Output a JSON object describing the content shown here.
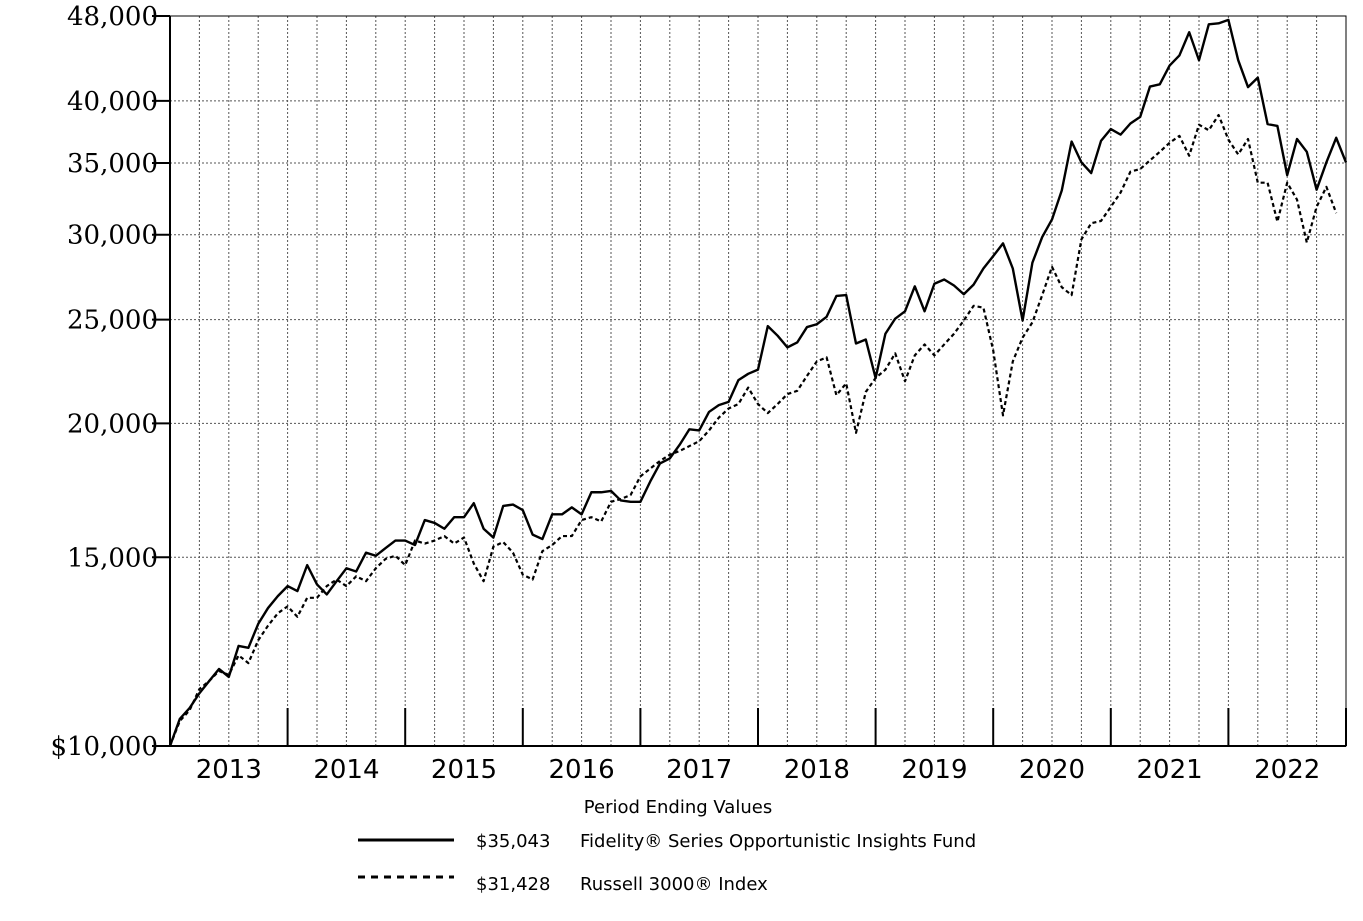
{
  "chart_data": {
    "type": "line",
    "y_scale": "log",
    "ylim": [
      10000,
      48000
    ],
    "xlim": [
      "2012-12",
      "2022-12"
    ],
    "grid": true,
    "y_ticks": [
      {
        "value": 10000,
        "label": "$10,000"
      },
      {
        "value": 15000,
        "label": "15,000"
      },
      {
        "value": 20000,
        "label": "20,000"
      },
      {
        "value": 25000,
        "label": "25,000"
      },
      {
        "value": 30000,
        "label": "30,000"
      },
      {
        "value": 35000,
        "label": "35,000"
      },
      {
        "value": 40000,
        "label": "40,000"
      },
      {
        "value": 48000,
        "label": "48,000"
      }
    ],
    "x_tick_labels": [
      "2013",
      "2014",
      "2015",
      "2016",
      "2017",
      "2018",
      "2019",
      "2020",
      "2021",
      "2022"
    ],
    "legend_title": "Period Ending Values",
    "series": [
      {
        "name": "Fidelity® Series Opportunistic Insights Fund",
        "ending_value_label": "$35,043",
        "style": "solid",
        "color": "#000000",
        "x_start": "2012-12",
        "values": [
          10000,
          10600,
          10850,
          11200,
          11500,
          11800,
          11600,
          12400,
          12350,
          13000,
          13450,
          13800,
          14100,
          13950,
          14750,
          14150,
          13850,
          14250,
          14650,
          14550,
          15150,
          15050,
          15300,
          15550,
          15550,
          15400,
          16250,
          16150,
          15950,
          16350,
          16350,
          16850,
          15950,
          15650,
          16750,
          16800,
          16600,
          15750,
          15600,
          16450,
          16450,
          16700,
          16450,
          17250,
          17250,
          17300,
          16950,
          16900,
          16900,
          17650,
          18350,
          18550,
          19100,
          19750,
          19700,
          20500,
          20800,
          20950,
          21950,
          22250,
          22450,
          24650,
          24150,
          23550,
          23800,
          24600,
          24750,
          25150,
          26300,
          26350,
          23750,
          23950,
          22050,
          24250,
          25050,
          25450,
          26850,
          25450,
          27000,
          27250,
          26900,
          26400,
          26950,
          27900,
          28650,
          29450,
          27900,
          24950,
          28250,
          29850,
          31000,
          33000,
          36650,
          35050,
          34250,
          36700,
          37650,
          37200,
          38100,
          38650,
          41250,
          41450,
          43150,
          44100,
          46350,
          43650,
          47150,
          47250,
          47600,
          43650,
          41200,
          42050,
          38050,
          37900,
          34100,
          36850,
          35850,
          33050,
          35050,
          36950,
          35043
        ]
      },
      {
        "name": "Russell 3000® Index",
        "ending_value_label": "$31,428",
        "style": "dashed",
        "color": "#000000",
        "x_start": "2012-12",
        "values": [
          10000,
          10550,
          10800,
          11300,
          11500,
          11750,
          11650,
          12150,
          11950,
          12550,
          12950,
          13300,
          13500,
          13200,
          13750,
          13750,
          14100,
          14300,
          14100,
          14400,
          14250,
          14650,
          14950,
          15050,
          14750,
          15550,
          15450,
          15550,
          15700,
          15450,
          15650,
          14800,
          14250,
          15350,
          15500,
          15150,
          14450,
          14300,
          15200,
          15400,
          15700,
          15700,
          16250,
          16350,
          16200,
          16900,
          17000,
          17150,
          17850,
          18150,
          18450,
          18700,
          18850,
          19050,
          19250,
          19700,
          20250,
          20650,
          20850,
          21600,
          20850,
          20450,
          20850,
          21300,
          21450,
          22150,
          22850,
          23050,
          21250,
          21800,
          19600,
          21400,
          22050,
          22450,
          23250,
          21900,
          23150,
          23700,
          23150,
          23700,
          24250,
          24950,
          25750,
          25650,
          23400,
          20350,
          22850,
          24050,
          24850,
          26350,
          28000,
          26800,
          26350,
          29700,
          30750,
          30900,
          31850,
          32850,
          34350,
          34550,
          35200,
          35850,
          36550,
          37100,
          35550,
          38000,
          37550,
          38800,
          36800,
          35650,
          36850,
          33550,
          33550,
          30850,
          33550,
          32350,
          29500,
          31850,
          33250,
          31428
        ]
      }
    ]
  }
}
